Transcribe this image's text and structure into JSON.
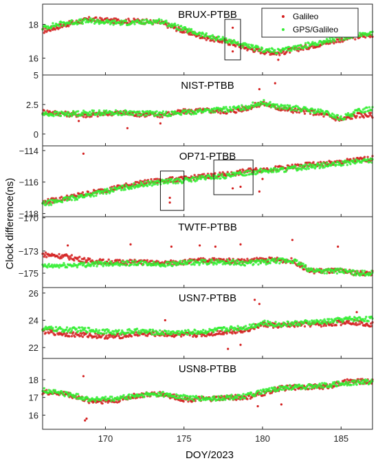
{
  "figure": {
    "ylabel": "Clock difference(ns)",
    "xlabel": "DOY/2023"
  },
  "legend": {
    "placement": "top-right of first panel",
    "items": [
      {
        "label": "Galileo",
        "color": "#d42020",
        "marker": "dot"
      },
      {
        "label": "GPS/Galileo",
        "color": "#33ee33",
        "marker": "dot"
      }
    ]
  },
  "chart_data": [
    {
      "type": "scatter",
      "title": "BRUX-PTBB",
      "xlim": [
        166,
        187
      ],
      "ylim": [
        15,
        19.2
      ],
      "yticks": [
        16,
        18
      ],
      "series": [
        {
          "name": "Galileo",
          "x": [
            166,
            167.5,
            169,
            170.5,
            172,
            173.5,
            175,
            176.5,
            178,
            179,
            180,
            181,
            182.5,
            184,
            185.5,
            187
          ],
          "y": [
            17.6,
            18.0,
            18.3,
            18.2,
            18.2,
            18.1,
            17.6,
            17.2,
            16.9,
            16.6,
            16.4,
            16.3,
            16.6,
            16.9,
            17.2,
            17.4
          ]
        },
        {
          "name": "GPS/Galileo",
          "x": [
            166,
            167.5,
            169,
            170.5,
            172,
            173.5,
            175,
            176.5,
            178,
            179,
            180,
            181,
            182.5,
            184,
            185.5,
            187
          ],
          "y": [
            17.8,
            18.1,
            18.2,
            18.1,
            18.1,
            18.2,
            17.7,
            17.3,
            17.0,
            16.7,
            16.5,
            16.4,
            16.7,
            17.0,
            17.3,
            17.5
          ]
        }
      ],
      "outliers": {
        "x": [
          178.1,
          178.1,
          181.0,
          176.5
        ],
        "y": [
          17.8,
          16.4,
          15.9,
          17.2
        ]
      },
      "highlight_boxes": [
        {
          "x": [
            177.6,
            178.6
          ],
          "y": [
            15.9,
            18.3
          ]
        }
      ]
    },
    {
      "type": "scatter",
      "title": "NIST-PTBB",
      "xlim": [
        166,
        187
      ],
      "ylim": [
        -1,
        5
      ],
      "yticks": [
        0,
        2.5,
        5
      ],
      "series": [
        {
          "name": "Galileo",
          "x": [
            166,
            167.5,
            169,
            170.5,
            172,
            173.5,
            175,
            176.5,
            178,
            179,
            180,
            181,
            182,
            183,
            184,
            185,
            186,
            187
          ],
          "y": [
            1.9,
            1.7,
            1.6,
            1.8,
            1.7,
            1.6,
            1.9,
            2.0,
            1.9,
            2.2,
            2.6,
            2.2,
            2.0,
            1.9,
            1.6,
            1.2,
            1.6,
            1.6
          ]
        },
        {
          "name": "GPS/Galileo",
          "x": [
            166,
            167.5,
            169,
            170.5,
            172,
            173.5,
            175,
            176.5,
            178,
            179,
            180,
            181,
            182,
            183,
            184,
            185,
            186,
            187
          ],
          "y": [
            1.7,
            1.7,
            1.8,
            1.8,
            1.8,
            1.7,
            1.8,
            2.0,
            2.1,
            2.3,
            2.7,
            2.3,
            2.2,
            2.0,
            1.8,
            1.3,
            1.9,
            2.2
          ]
        }
      ],
      "outliers": {
        "x": [
          171.4,
          173.5,
          179.8,
          180.8,
          168.3
        ],
        "y": [
          0.5,
          0.9,
          3.8,
          4.3,
          1.1
        ]
      }
    },
    {
      "type": "scatter",
      "title": "OP71-PTBB",
      "xlim": [
        166,
        187
      ],
      "ylim": [
        -118.2,
        -113.7
      ],
      "yticks": [
        -118,
        -116,
        -114
      ],
      "series": [
        {
          "name": "Galileo",
          "x": [
            166,
            167.5,
            169,
            170.5,
            172,
            173.5,
            175,
            176.5,
            178,
            179,
            180,
            181.5,
            183,
            184.5,
            186,
            187
          ],
          "y": [
            -117.3,
            -117.0,
            -116.7,
            -116.4,
            -116.1,
            -115.9,
            -115.8,
            -115.6,
            -115.5,
            -115.3,
            -115.2,
            -115.1,
            -114.9,
            -114.8,
            -114.6,
            -114.5
          ]
        },
        {
          "name": "GPS/Galileo",
          "x": [
            166,
            167.5,
            169,
            170.5,
            172,
            173.5,
            175,
            176.5,
            178,
            179,
            180,
            181.5,
            183,
            184.5,
            186,
            187
          ],
          "y": [
            -117.4,
            -117.1,
            -116.8,
            -116.5,
            -116.2,
            -116.0,
            -115.9,
            -115.7,
            -115.6,
            -115.4,
            -115.3,
            -115.2,
            -115.0,
            -114.9,
            -114.7,
            -114.6
          ]
        }
      ],
      "outliers": {
        "x": [
          174.1,
          174.1,
          178.1,
          178.6,
          179.8,
          180.0,
          168.6
        ],
        "y": [
          -117.3,
          -117.0,
          -116.4,
          -116.3,
          -116.6,
          -115.8,
          -114.2
        ]
      },
      "highlight_boxes": [
        {
          "x": [
            173.5,
            175.0
          ],
          "y": [
            -117.8,
            -115.3
          ]
        },
        {
          "x": [
            176.9,
            179.4
          ],
          "y": [
            -116.8,
            -114.6
          ]
        }
      ]
    },
    {
      "type": "scatter",
      "title": "TWTF-PTBB",
      "xlim": [
        166,
        187
      ],
      "ylim": [
        -176.3,
        -169.9
      ],
      "yticks": [
        -175,
        -173,
        -170
      ],
      "series": [
        {
          "name": "Galileo",
          "x": [
            166,
            167.5,
            169,
            170.5,
            172,
            173.5,
            175,
            176.5,
            178,
            179,
            180,
            181,
            182,
            183,
            184,
            185,
            186,
            187
          ],
          "y": [
            -173.3,
            -173.5,
            -173.9,
            -174.0,
            -174.0,
            -174.1,
            -174.0,
            -173.8,
            -173.9,
            -173.9,
            -173.8,
            -173.8,
            -173.9,
            -174.8,
            -174.8,
            -174.8,
            -175.0,
            -175.0
          ]
        },
        {
          "name": "GPS/Galileo",
          "x": [
            166,
            167.5,
            169,
            170.5,
            172,
            173.5,
            175,
            176.5,
            178,
            179,
            180,
            181,
            182,
            183,
            184,
            185,
            186,
            187
          ],
          "y": [
            -174.4,
            -174.3,
            -174.2,
            -174.1,
            -174.1,
            -174.2,
            -174.1,
            -174.0,
            -174.0,
            -174.1,
            -174.0,
            -173.9,
            -173.9,
            -174.7,
            -174.8,
            -174.8,
            -175.0,
            -175.0
          ]
        }
      ],
      "outliers": {
        "x": [
          167.6,
          171.6,
          174.2,
          176.0,
          177.0,
          181.9,
          184.8,
          178.6
        ],
        "y": [
          -172.5,
          -172.4,
          -172.6,
          -172.5,
          -172.6,
          -172.0,
          -172.6,
          -172.4
        ]
      }
    },
    {
      "type": "scatter",
      "title": "USN7-PTBB",
      "xlim": [
        166,
        187
      ],
      "ylim": [
        21.2,
        26.4
      ],
      "yticks": [
        22,
        24,
        26
      ],
      "series": [
        {
          "name": "Galileo",
          "x": [
            166,
            167.5,
            169,
            170.5,
            172,
            173.5,
            175,
            176.5,
            178,
            179,
            180,
            181,
            182.5,
            184,
            185.5,
            187
          ],
          "y": [
            23.2,
            23.0,
            22.9,
            22.8,
            23.0,
            23.0,
            22.9,
            23.0,
            23.2,
            23.3,
            23.7,
            23.6,
            23.7,
            23.7,
            23.9,
            23.7
          ]
        },
        {
          "name": "GPS/Galileo",
          "x": [
            166,
            167.5,
            169,
            170.5,
            172,
            173.5,
            175,
            176.5,
            178,
            179,
            180,
            181,
            182.5,
            184,
            185.5,
            187
          ],
          "y": [
            23.4,
            23.3,
            23.3,
            23.1,
            23.2,
            23.1,
            23.1,
            23.2,
            23.4,
            23.5,
            23.8,
            23.7,
            23.8,
            23.9,
            24.1,
            24.1
          ]
        }
      ],
      "outliers": {
        "x": [
          173.8,
          177.8,
          178.6,
          179.5,
          179.8,
          186.0
        ],
        "y": [
          24.0,
          21.9,
          22.2,
          25.5,
          25.2,
          24.6
        ]
      }
    },
    {
      "type": "scatter",
      "title": "USN8-PTBB",
      "xlim": [
        166,
        187
      ],
      "ylim": [
        15.2,
        19.2
      ],
      "yticks": [
        16,
        17,
        18
      ],
      "series": [
        {
          "name": "Galileo",
          "x": [
            166,
            167.5,
            169,
            170.5,
            172,
            173.5,
            175,
            176.5,
            178,
            179,
            180,
            181,
            182.5,
            184,
            185.5,
            187
          ],
          "y": [
            17.3,
            17.2,
            16.8,
            16.8,
            17.1,
            17.2,
            16.9,
            16.9,
            17.0,
            17.0,
            17.2,
            17.5,
            17.6,
            17.6,
            17.9,
            17.9
          ]
        },
        {
          "name": "GPS/Galileo",
          "x": [
            166,
            167.5,
            169,
            170.5,
            172,
            173.5,
            175,
            176.5,
            178,
            179,
            180,
            181,
            182.5,
            184,
            185.5,
            187
          ],
          "y": [
            17.4,
            17.2,
            16.9,
            16.9,
            17.1,
            17.2,
            17.0,
            16.9,
            17.0,
            17.1,
            17.3,
            17.5,
            17.6,
            17.7,
            17.8,
            17.9
          ]
        }
      ],
      "outliers": {
        "x": [
          168.6,
          168.8,
          168.7,
          179.7,
          181.2
        ],
        "y": [
          18.2,
          15.8,
          15.7,
          16.5,
          16.6
        ]
      }
    }
  ],
  "x_axis": {
    "ticks": [
      170,
      175,
      180,
      185
    ]
  }
}
